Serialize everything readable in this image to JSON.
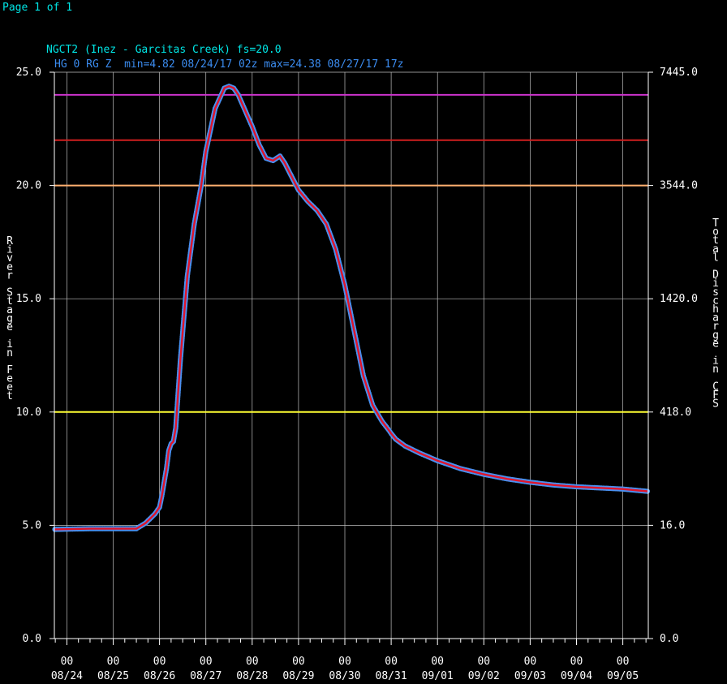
{
  "page_label": "Page 1 of 1",
  "colors": {
    "background": "#000000",
    "grid": "#bfbfbf",
    "text": "#ffffff",
    "title": "#00e5e5",
    "series_text": "#3b8cf0",
    "line": "#e0142a",
    "marker": "#4a90f0",
    "record": "#cc33cc",
    "major": "#d01f1f",
    "moderate": "#ffb070",
    "action": "#ffff33"
  },
  "chart_data": {
    "type": "line",
    "title": "NGCT2 (Inez - Garcitas Creek) fs=20.0",
    "subtitle": "HG 0 RG Z  min=4.82 08/24/17 02z max=24.38 08/27/17 17z",
    "ylabel": "River Stage in Feet",
    "y2label": "Total Discharge in CFS",
    "ylim": [
      0,
      25
    ],
    "xlim": [
      -0.27,
      12.55
    ],
    "grid": true,
    "y_ticks": [
      "0.0",
      "5.0",
      "10.0",
      "15.0",
      "20.0",
      "25.0"
    ],
    "y2_ticks": [
      "0.0",
      "16.0",
      "418.0",
      "1420.0",
      "3544.0",
      "7445.0"
    ],
    "x_ticks_hour": [
      "00",
      "00",
      "00",
      "00",
      "00",
      "00",
      "00",
      "00",
      "00",
      "00",
      "00",
      "00",
      "00"
    ],
    "x_ticks_date": [
      "08/24",
      "08/25",
      "08/26",
      "08/27",
      "08/28",
      "08/29",
      "08/30",
      "08/31",
      "09/01",
      "09/02",
      "09/03",
      "09/04",
      "09/05"
    ],
    "threshold_lines": [
      {
        "value": 24.0,
        "color": "#cc33cc"
      },
      {
        "value": 22.0,
        "color": "#d01f1f"
      },
      {
        "value": 20.0,
        "color": "#ffb070"
      },
      {
        "value": 10.0,
        "color": "#ffff33"
      }
    ],
    "series": [
      {
        "x": [
          -0.26,
          0.5,
          1.0,
          1.5,
          1.7,
          1.9,
          2.0,
          2.05,
          2.15,
          2.2,
          2.25,
          2.3,
          2.35,
          2.45,
          2.6,
          2.75,
          2.9,
          3.0,
          3.2,
          3.4,
          3.5,
          3.6,
          3.7,
          3.85,
          4.0,
          4.15,
          4.3,
          4.45,
          4.6,
          4.7,
          4.75,
          4.8,
          4.9,
          5.0,
          5.2,
          5.4,
          5.6,
          5.8,
          6.0,
          6.2,
          6.4,
          6.6,
          6.8,
          6.95,
          7.0,
          7.1,
          7.3,
          7.6,
          8.0,
          8.5,
          9.0,
          9.5,
          10.0,
          10.5,
          11.0,
          11.5,
          12.0,
          12.53
        ],
        "y": [
          4.82,
          4.85,
          4.85,
          4.85,
          5.1,
          5.5,
          5.8,
          6.3,
          7.5,
          8.3,
          8.6,
          8.7,
          9.3,
          12.3,
          16.0,
          18.3,
          20.0,
          21.5,
          23.4,
          24.3,
          24.38,
          24.3,
          24.0,
          23.3,
          22.6,
          21.8,
          21.2,
          21.1,
          21.3,
          21.0,
          20.8,
          20.6,
          20.2,
          19.8,
          19.3,
          18.9,
          18.3,
          17.2,
          15.6,
          13.6,
          11.6,
          10.3,
          9.6,
          9.2,
          9.05,
          8.8,
          8.5,
          8.2,
          7.85,
          7.5,
          7.25,
          7.05,
          6.9,
          6.78,
          6.7,
          6.65,
          6.6,
          6.5
        ]
      }
    ]
  }
}
